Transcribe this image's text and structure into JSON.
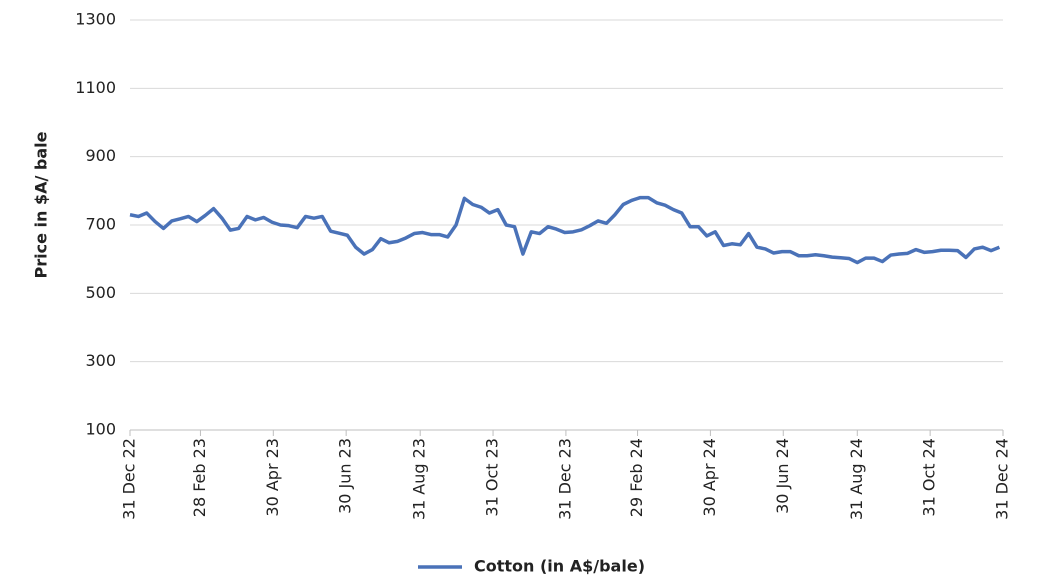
{
  "chart_data": {
    "type": "line",
    "y_label": "Price in $A/ bale",
    "x": [
      "2022-12-31",
      "2023-01-07",
      "2023-01-14",
      "2023-01-21",
      "2023-01-28",
      "2023-02-04",
      "2023-02-11",
      "2023-02-18",
      "2023-02-25",
      "2023-03-04",
      "2023-03-11",
      "2023-03-18",
      "2023-03-25",
      "2023-04-01",
      "2023-04-08",
      "2023-04-15",
      "2023-04-22",
      "2023-04-29",
      "2023-05-06",
      "2023-05-13",
      "2023-05-20",
      "2023-05-27",
      "2023-06-03",
      "2023-06-10",
      "2023-06-17",
      "2023-06-24",
      "2023-07-01",
      "2023-07-08",
      "2023-07-15",
      "2023-07-22",
      "2023-07-29",
      "2023-08-05",
      "2023-08-12",
      "2023-08-19",
      "2023-08-26",
      "2023-09-02",
      "2023-09-09",
      "2023-09-16",
      "2023-09-23",
      "2023-09-30",
      "2023-10-07",
      "2023-10-14",
      "2023-10-21",
      "2023-10-28",
      "2023-11-04",
      "2023-11-11",
      "2023-11-18",
      "2023-11-25",
      "2023-12-02",
      "2023-12-09",
      "2023-12-16",
      "2023-12-23",
      "2023-12-30",
      "2024-01-06",
      "2024-01-13",
      "2024-01-20",
      "2024-01-27",
      "2024-02-03",
      "2024-02-10",
      "2024-02-17",
      "2024-02-24",
      "2024-03-02",
      "2024-03-09",
      "2024-03-16",
      "2024-03-23",
      "2024-03-30",
      "2024-04-06",
      "2024-04-13",
      "2024-04-20",
      "2024-04-27",
      "2024-05-04",
      "2024-05-11",
      "2024-05-18",
      "2024-05-25",
      "2024-06-01",
      "2024-06-08",
      "2024-06-15",
      "2024-06-22",
      "2024-06-29",
      "2024-07-06",
      "2024-07-13",
      "2024-07-20",
      "2024-07-27",
      "2024-08-03",
      "2024-08-10",
      "2024-08-17",
      "2024-08-24",
      "2024-08-31",
      "2024-09-07",
      "2024-09-14",
      "2024-09-21",
      "2024-09-28",
      "2024-10-05",
      "2024-10-12",
      "2024-10-19",
      "2024-10-26",
      "2024-11-02",
      "2024-11-09",
      "2024-11-16",
      "2024-11-23",
      "2024-11-30",
      "2024-12-07",
      "2024-12-14",
      "2024-12-21",
      "2024-12-28"
    ],
    "series": [
      {
        "name": "Cotton (in A$/bale)",
        "color": "#4a72b8",
        "values": [
          730,
          725,
          735,
          710,
          690,
          712,
          718,
          725,
          710,
          728,
          748,
          720,
          685,
          690,
          725,
          715,
          722,
          708,
          700,
          698,
          692,
          725,
          720,
          725,
          682,
          676,
          670,
          635,
          615,
          628,
          660,
          648,
          652,
          662,
          675,
          678,
          672,
          672,
          665,
          700,
          778,
          760,
          752,
          735,
          745,
          700,
          695,
          615,
          680,
          675,
          695,
          688,
          678,
          680,
          686,
          698,
          712,
          705,
          730,
          760,
          772,
          780,
          780,
          765,
          758,
          745,
          735,
          695,
          695,
          668,
          680,
          640,
          645,
          642,
          675,
          635,
          630,
          618,
          622,
          622,
          610,
          610,
          613,
          610,
          606,
          604,
          602,
          590,
          603,
          603,
          593,
          612,
          615,
          617,
          628,
          620,
          622,
          626,
          626,
          625,
          605,
          630,
          635,
          625,
          635
        ]
      }
    ],
    "xlim": [
      "2022-12-31",
      "2024-12-31"
    ],
    "xticks": [
      {
        "value": "2022-12-31",
        "label": "31 Dec 22"
      },
      {
        "value": "2023-02-28",
        "label": "28 Feb 23"
      },
      {
        "value": "2023-04-30",
        "label": "30 Apr 23"
      },
      {
        "value": "2023-06-30",
        "label": "30 Jun 23"
      },
      {
        "value": "2023-08-31",
        "label": "31 Aug 23"
      },
      {
        "value": "2023-10-31",
        "label": "31 Oct 23"
      },
      {
        "value": "2023-12-31",
        "label": "31 Dec 23"
      },
      {
        "value": "2024-02-29",
        "label": "29 Feb 24"
      },
      {
        "value": "2024-04-30",
        "label": "30 Apr 24"
      },
      {
        "value": "2024-06-30",
        "label": "30 Jun 24"
      },
      {
        "value": "2024-08-31",
        "label": "31 Aug 24"
      },
      {
        "value": "2024-10-31",
        "label": "31 Oct 24"
      },
      {
        "value": "2024-12-31",
        "label": "31 Dec 24"
      }
    ],
    "ylim": [
      100,
      1300
    ],
    "yticks": [
      100,
      300,
      500,
      700,
      900,
      1100,
      1300
    ],
    "grid": true,
    "legend": "bottom"
  }
}
